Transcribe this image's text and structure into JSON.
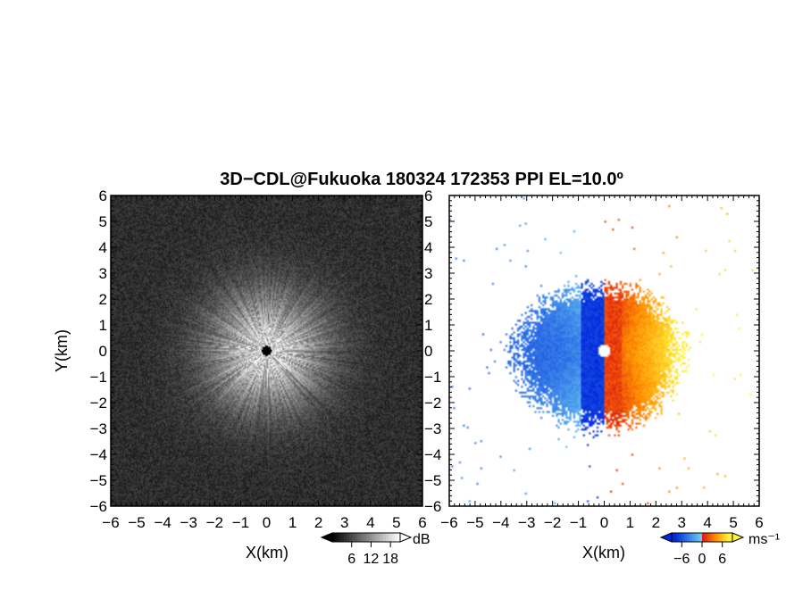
{
  "title": "3D−CDL@Fukuoka 180324 172353 PPI EL=10.0º",
  "chart_data": [
    {
      "type": "heatmap",
      "panel": "left",
      "title": "",
      "xlabel": "X(km)",
      "ylabel": "Y(km)",
      "xlim": [
        -6,
        6
      ],
      "ylim": [
        -6,
        6
      ],
      "ticks": [
        -6,
        -5,
        -4,
        -3,
        -2,
        -1,
        0,
        1,
        2,
        3,
        4,
        5,
        6
      ],
      "tick_labels": [
        "−6",
        "−5",
        "−4",
        "−3",
        "−2",
        "−1",
        "0",
        "1",
        "2",
        "3",
        "4",
        "5",
        "6"
      ],
      "colorbar": {
        "unit": "dB",
        "ticks": [
          6,
          12,
          18
        ],
        "tick_labels": [
          "6",
          "12",
          "18"
        ],
        "range": [
          0,
          21
        ],
        "colormap": "grayscale"
      },
      "field": {
        "description_center": [
          0,
          0
        ],
        "bright_radius_km": 2.3,
        "min_db": 2,
        "max_db": 20
      }
    },
    {
      "type": "heatmap",
      "panel": "right",
      "title": "",
      "xlabel": "X(km)",
      "ylabel": "",
      "xlim": [
        -6,
        6
      ],
      "ylim": [
        -6,
        6
      ],
      "ticks": [
        -6,
        -5,
        -4,
        -3,
        -2,
        -1,
        0,
        1,
        2,
        3,
        4,
        5,
        6
      ],
      "tick_labels": [
        "−6",
        "−5",
        "−4",
        "−3",
        "−2",
        "−1",
        "0",
        "1",
        "2",
        "3",
        "4",
        "5",
        "6"
      ],
      "colorbar": {
        "unit": "ms⁻¹",
        "ticks": [
          -6,
          0,
          6
        ],
        "tick_labels": [
          "−6",
          "0",
          "6"
        ],
        "range": [
          -9,
          9
        ],
        "colormap": "blue-cyan-red-yellow"
      },
      "field": {
        "extent_x_km": [
          -4.2,
          3.3
        ],
        "extent_y_km": [
          -3.3,
          2.8
        ],
        "max_abs_velocity": 8
      }
    }
  ]
}
